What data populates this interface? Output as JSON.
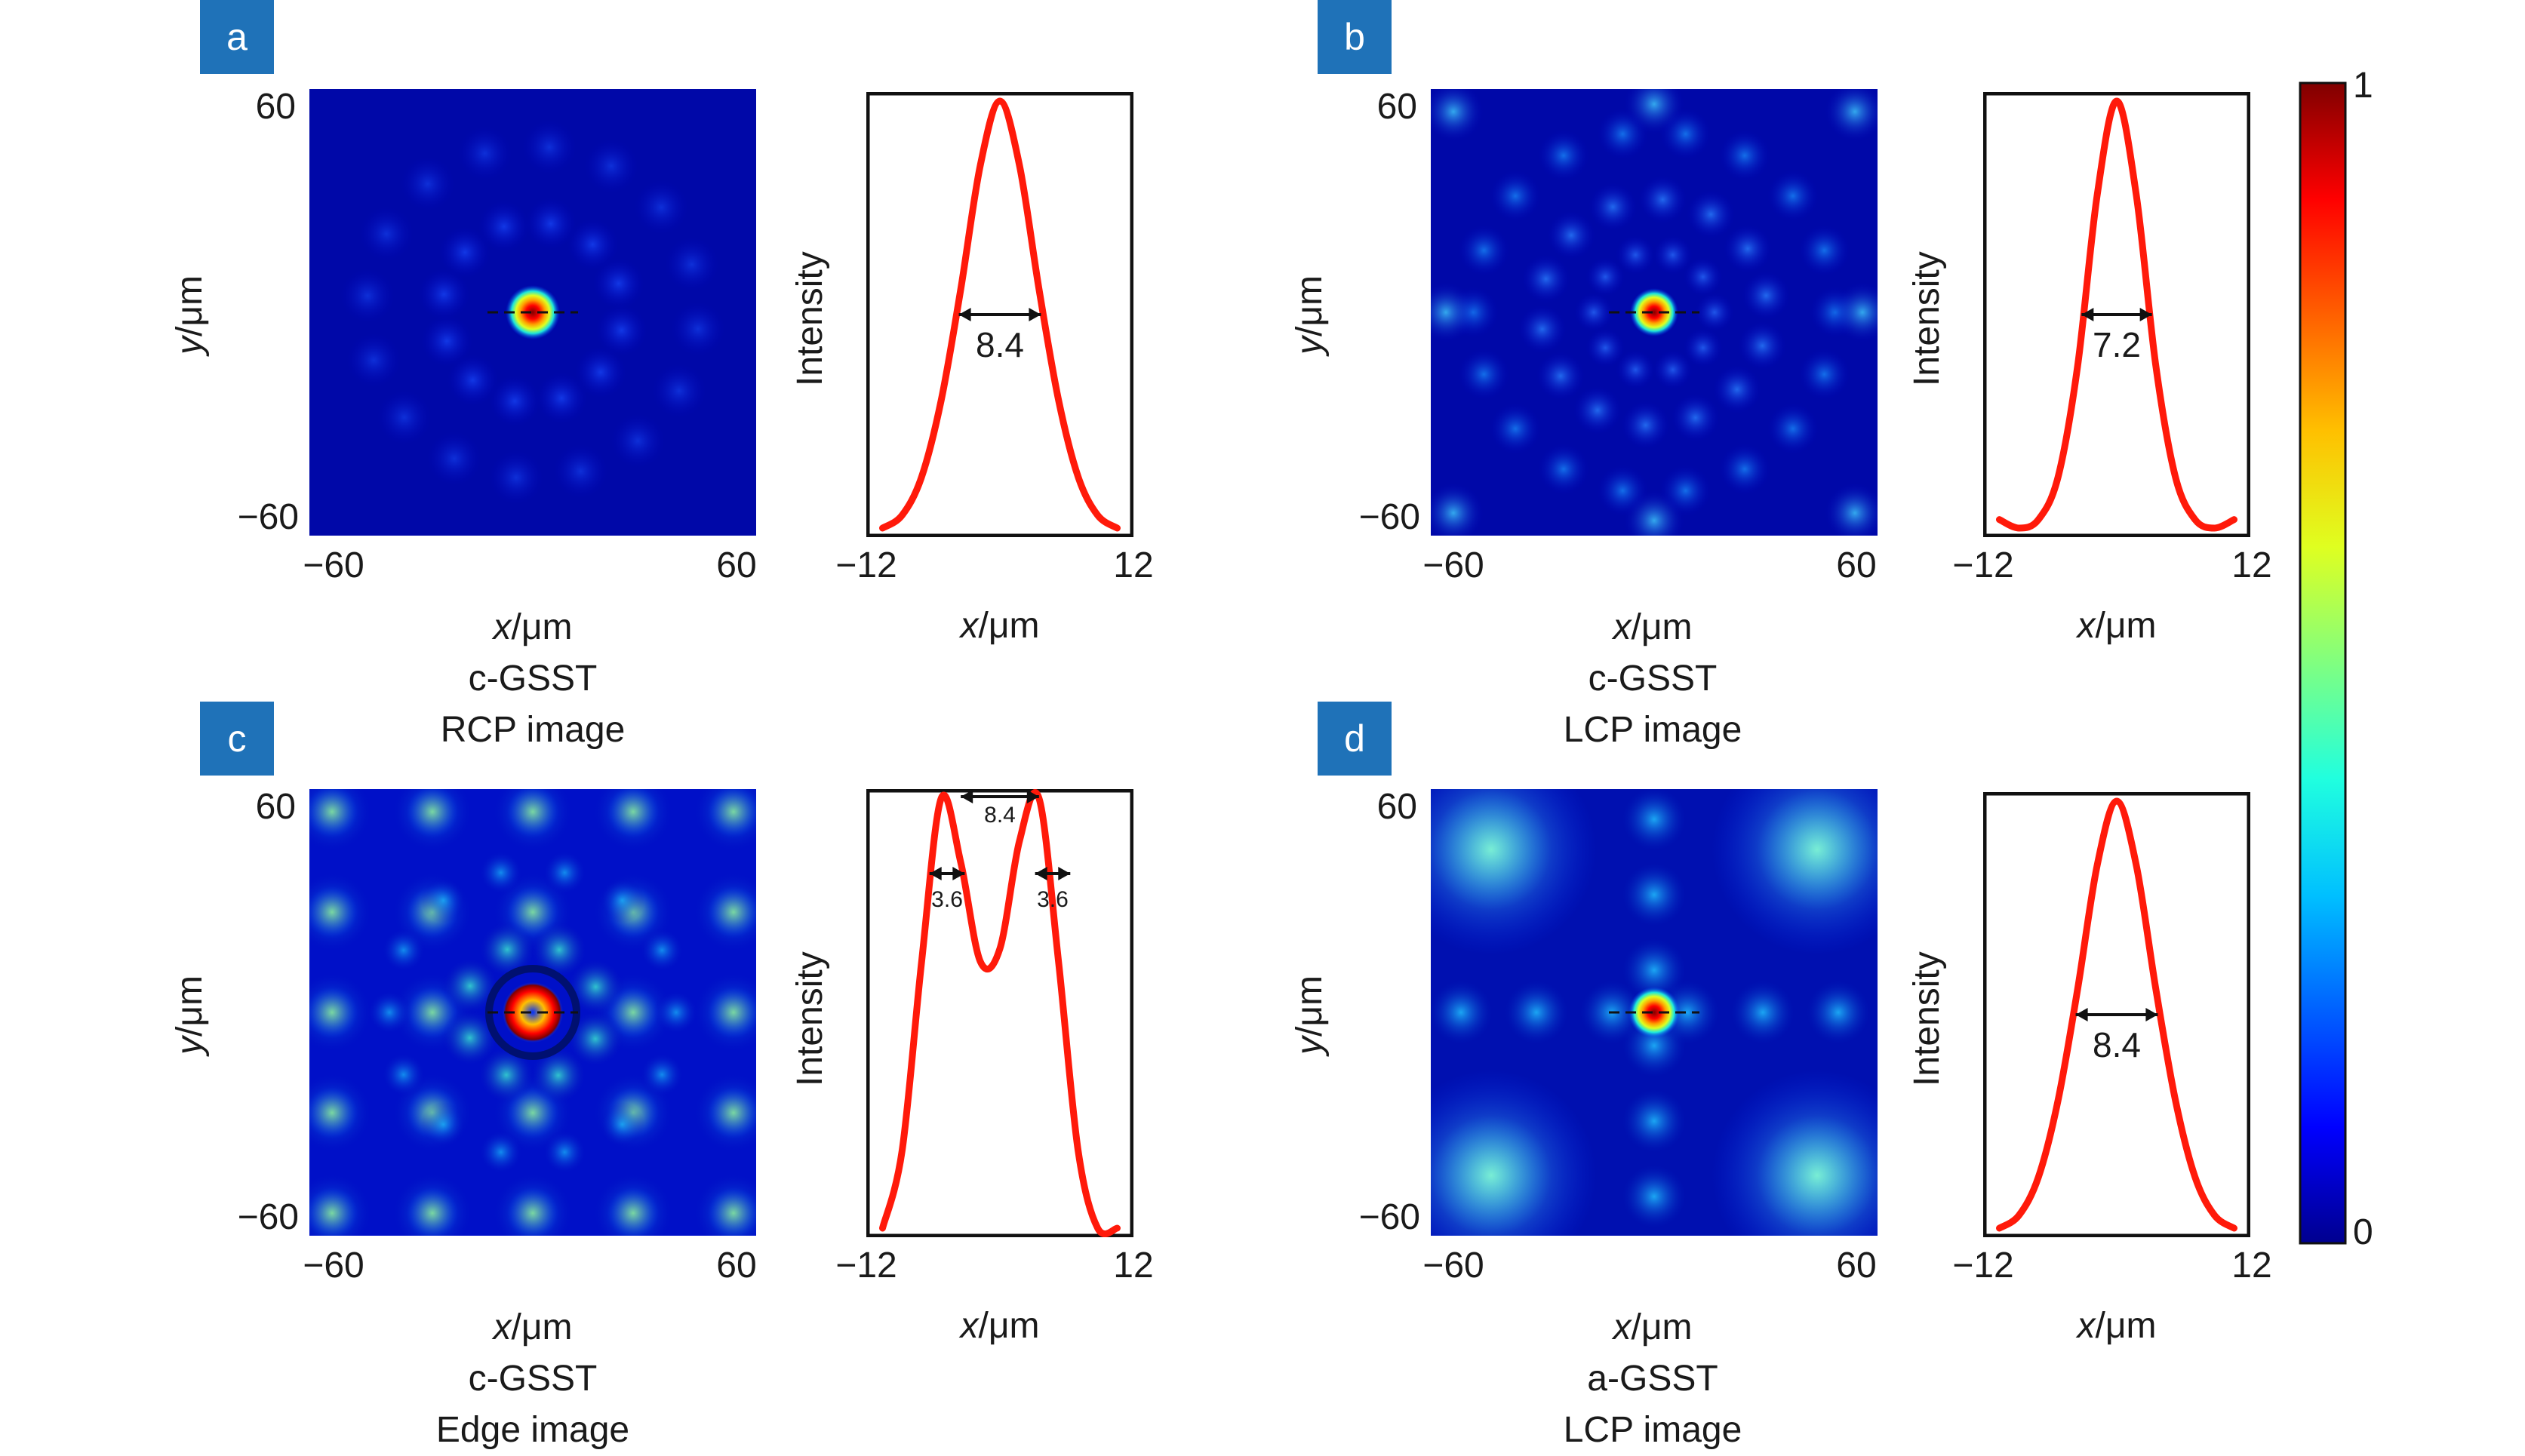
{
  "colors": {
    "jet_dark": "#00008b",
    "curve": "#ff1a0a",
    "badge": "#1f72b8"
  },
  "colorbar": {
    "max_label": "1",
    "min_label": "0",
    "colormap": "jet"
  },
  "chart_data": [
    {
      "panel": "a",
      "type": "heatmap",
      "caption_line1": "c-GSST",
      "caption_line2": "RCP image",
      "xlabel_var": "x",
      "xlabel_unit": "/μm",
      "ylabel_var": "y",
      "ylabel_unit": "/μm",
      "xlim": [
        -60,
        60
      ],
      "ylim": [
        -60,
        60
      ],
      "x_ticks": [
        "−60",
        "60"
      ],
      "y_ticks": [
        "60",
        "−60"
      ],
      "profile": {
        "type": "line",
        "ylabel": "Intensity",
        "xlabel_var": "x",
        "xlabel_unit": "/μm",
        "xlim": [
          -12,
          12
        ],
        "x_ticks": [
          "−12",
          "12"
        ],
        "shape": "single-peak",
        "x": [
          -12,
          -10,
          -8,
          -6,
          -4,
          -2,
          0,
          2,
          4,
          6,
          8,
          10,
          12
        ],
        "y": [
          0.0,
          0.03,
          0.12,
          0.3,
          0.56,
          0.85,
          1.0,
          0.85,
          0.56,
          0.3,
          0.12,
          0.03,
          0.0
        ],
        "fwhm_label": "8.4",
        "fwhm": 8.4
      }
    },
    {
      "panel": "b",
      "type": "heatmap",
      "caption_line1": "c-GSST",
      "caption_line2": "LCP image",
      "xlabel_var": "x",
      "xlabel_unit": "/μm",
      "ylabel_var": "y",
      "ylabel_unit": "/μm",
      "xlim": [
        -60,
        60
      ],
      "ylim": [
        -60,
        60
      ],
      "x_ticks": [
        "−60",
        "60"
      ],
      "y_ticks": [
        "60",
        "−60"
      ],
      "profile": {
        "type": "line",
        "ylabel": "Intensity",
        "xlabel_var": "x",
        "xlabel_unit": "/μm",
        "xlim": [
          -12,
          12
        ],
        "x_ticks": [
          "−12",
          "12"
        ],
        "shape": "single-peak-sidelobes",
        "x": [
          -12,
          -10,
          -8,
          -6,
          -4,
          -2,
          0,
          2,
          4,
          6,
          8,
          10,
          12
        ],
        "y": [
          0.02,
          0.0,
          0.02,
          0.12,
          0.38,
          0.78,
          1.0,
          0.78,
          0.38,
          0.12,
          0.02,
          0.0,
          0.02
        ],
        "fwhm_label": "7.2",
        "fwhm": 7.2
      }
    },
    {
      "panel": "c",
      "type": "heatmap",
      "caption_line1": "c-GSST",
      "caption_line2": "Edge image",
      "xlabel_var": "x",
      "xlabel_unit": "/μm",
      "ylabel_var": "y",
      "ylabel_unit": "/μm",
      "xlim": [
        -60,
        60
      ],
      "ylim": [
        -60,
        60
      ],
      "x_ticks": [
        "−60",
        "60"
      ],
      "y_ticks": [
        "60",
        "−60"
      ],
      "profile": {
        "type": "line",
        "ylabel": "Intensity",
        "xlabel_var": "x",
        "xlabel_unit": "/μm",
        "xlim": [
          -12,
          12
        ],
        "x_ticks": [
          "−12",
          "12"
        ],
        "shape": "double-peak",
        "x": [
          -12,
          -10,
          -8,
          -6,
          -4,
          -2,
          0,
          2,
          4,
          6,
          8,
          10,
          12
        ],
        "y": [
          0.0,
          0.18,
          0.62,
          1.0,
          0.85,
          0.62,
          0.65,
          0.9,
          1.0,
          0.62,
          0.18,
          0.0,
          0.0
        ],
        "peak_separation_label": "8.4",
        "left_width_label": "3.6",
        "right_width_label": "3.6"
      }
    },
    {
      "panel": "d",
      "type": "heatmap",
      "caption_line1": "a-GSST",
      "caption_line2": "LCP image",
      "xlabel_var": "x",
      "xlabel_unit": "/μm",
      "ylabel_var": "y",
      "ylabel_unit": "/μm",
      "xlim": [
        -60,
        60
      ],
      "ylim": [
        -60,
        60
      ],
      "x_ticks": [
        "−60",
        "60"
      ],
      "y_ticks": [
        "60",
        "−60"
      ],
      "profile": {
        "type": "line",
        "ylabel": "Intensity",
        "xlabel_var": "x",
        "xlabel_unit": "/μm",
        "xlim": [
          -12,
          12
        ],
        "x_ticks": [
          "−12",
          "12"
        ],
        "shape": "single-peak",
        "x": [
          -12,
          -10,
          -8,
          -6,
          -4,
          -2,
          0,
          2,
          4,
          6,
          8,
          10,
          12
        ],
        "y": [
          0.0,
          0.03,
          0.12,
          0.3,
          0.56,
          0.85,
          1.0,
          0.85,
          0.56,
          0.3,
          0.12,
          0.03,
          0.0
        ],
        "fwhm_label": "8.4",
        "fwhm": 8.4
      }
    }
  ]
}
